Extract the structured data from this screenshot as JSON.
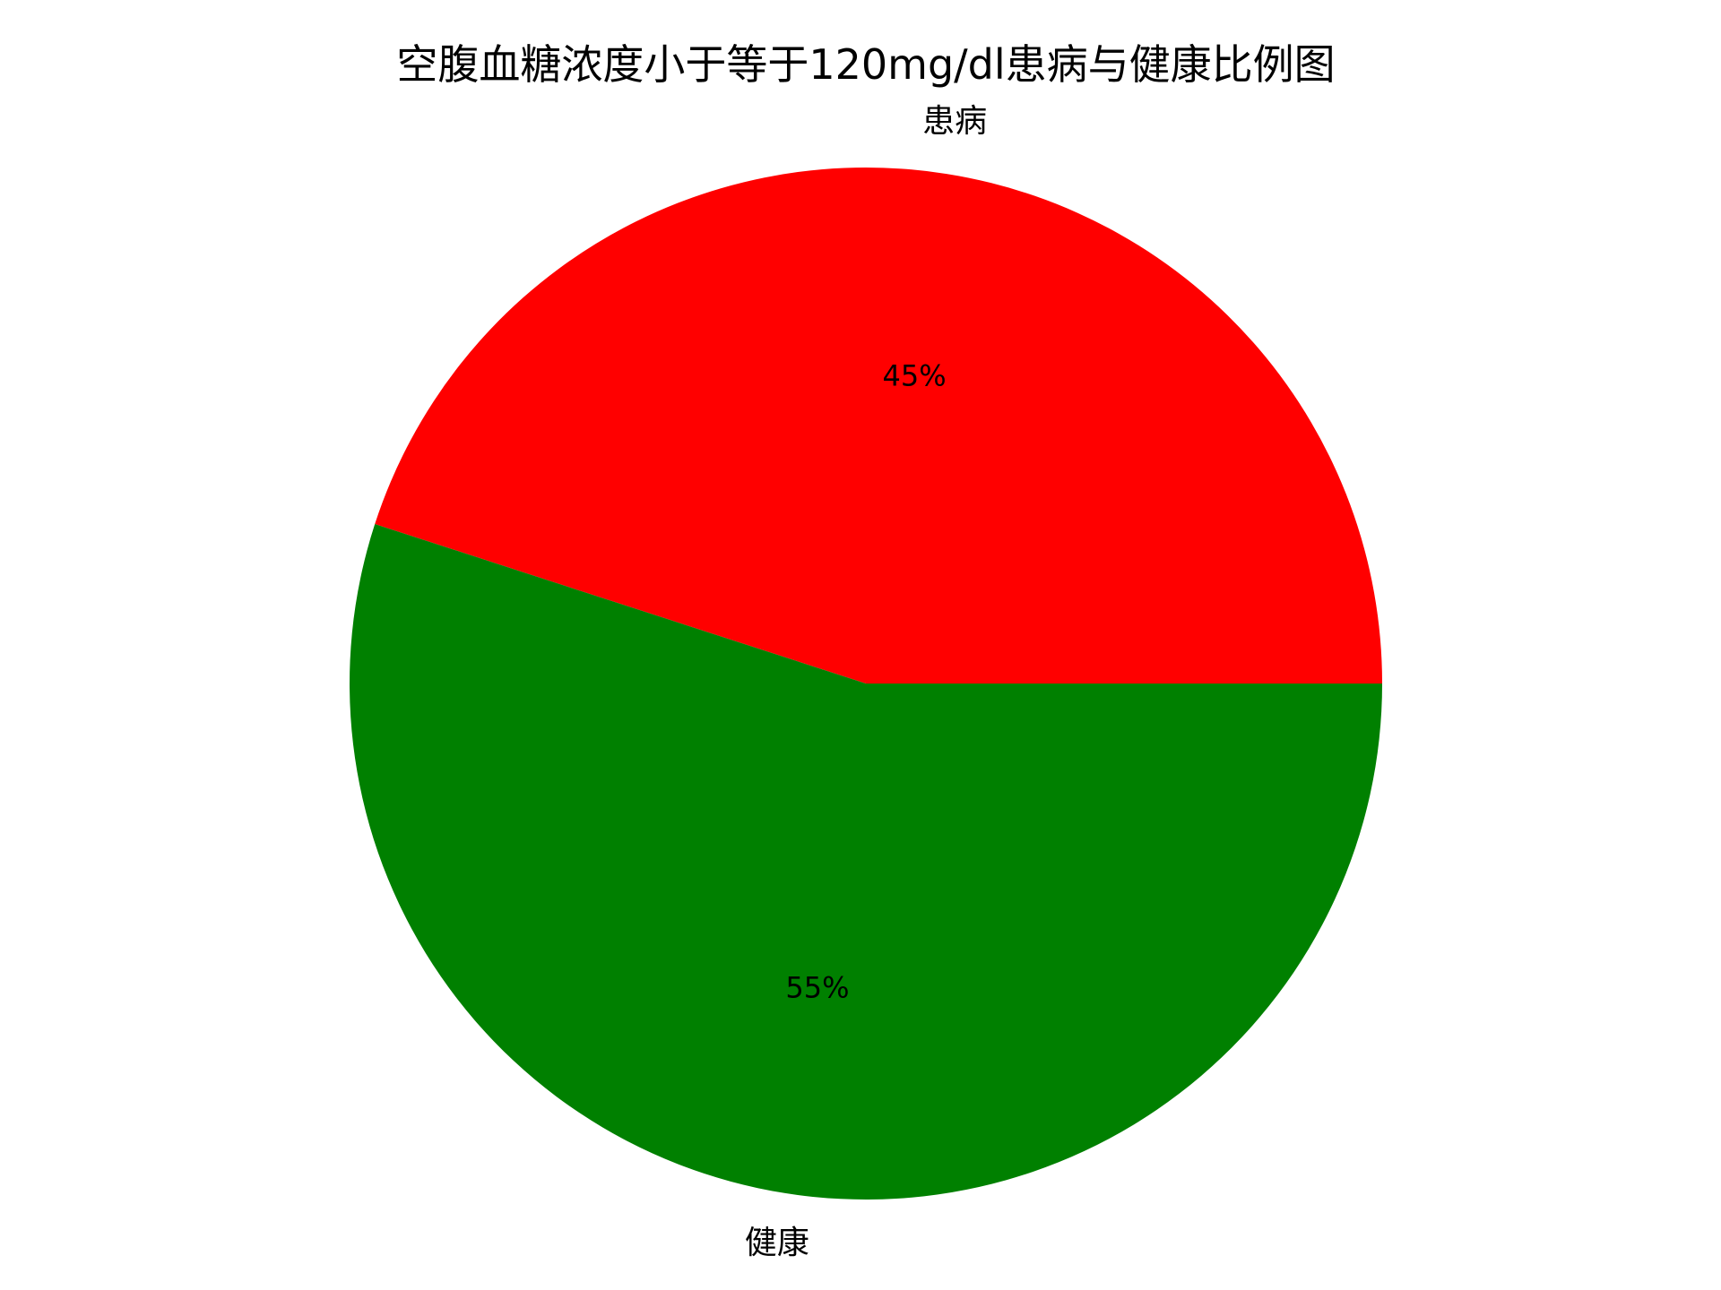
{
  "chart_data": {
    "type": "pie",
    "title": "空腹血糖浓度小于等于120mg/dl患病与健康比例图",
    "slices": [
      {
        "label": "患病",
        "value": 45,
        "pct_label": "45%",
        "color": "#ff0000"
      },
      {
        "label": "健康",
        "value": 55,
        "pct_label": "55%",
        "color": "#008000"
      }
    ],
    "start_angle_deg": 0,
    "direction": "counterclockwise",
    "legend": "none"
  }
}
